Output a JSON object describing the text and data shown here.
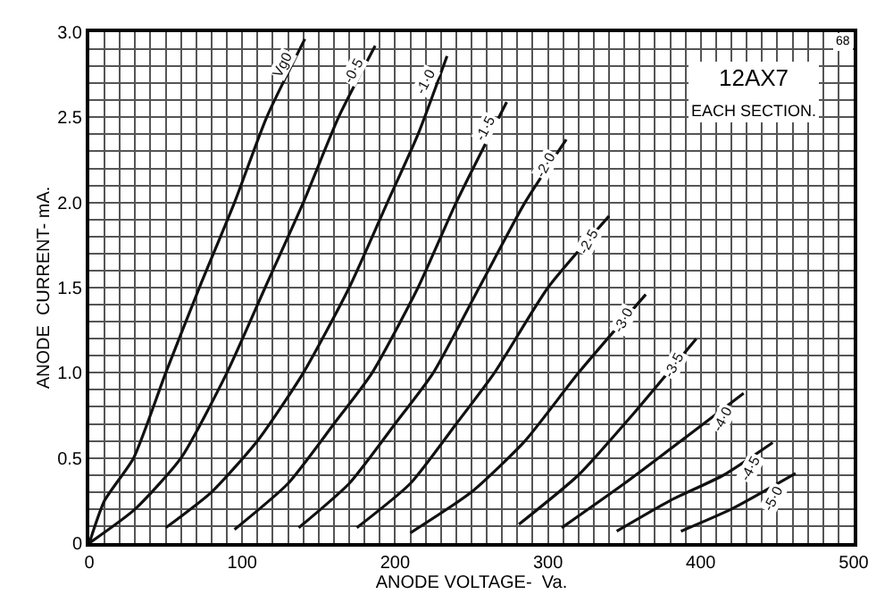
{
  "chart_data": {
    "type": "line",
    "title": "12AX7",
    "subtitle": "EACH SECTION.",
    "xlabel": "ANODE VOLTAGE-  Va.",
    "ylabel": "ANODE  CURRENT- mA.",
    "annotations": [
      "68"
    ],
    "legend": false,
    "grid": true,
    "marker": "none",
    "line_style": "solid",
    "xlim": [
      0,
      500
    ],
    "ylim": [
      0,
      3
    ],
    "xticks": [
      0,
      {
        "value": 10,
        "label": null
      },
      {
        "value": 20,
        "label": null
      },
      {
        "value": 30,
        "label": null
      },
      {
        "value": 40,
        "label": null
      },
      {
        "value": 50,
        "label": null
      },
      {
        "value": 60,
        "label": null
      },
      {
        "value": 70,
        "label": null
      },
      {
        "value": 80,
        "label": null
      },
      {
        "value": 90,
        "label": null
      },
      100,
      {
        "value": 110,
        "label": null
      },
      {
        "value": 120,
        "label": null
      },
      {
        "value": 130,
        "label": null
      },
      {
        "value": 140,
        "label": null
      },
      {
        "value": 150,
        "label": null
      },
      {
        "value": 160,
        "label": null
      },
      {
        "value": 170,
        "label": null
      },
      {
        "value": 180,
        "label": null
      },
      {
        "value": 190,
        "label": null
      },
      200,
      {
        "value": 210,
        "label": null
      },
      {
        "value": 220,
        "label": null
      },
      {
        "value": 230,
        "label": null
      },
      {
        "value": 240,
        "label": null
      },
      {
        "value": 250,
        "label": null
      },
      {
        "value": 260,
        "label": null
      },
      {
        "value": 270,
        "label": null
      },
      {
        "value": 280,
        "label": null
      },
      {
        "value": 290,
        "label": null
      },
      300,
      {
        "value": 310,
        "label": null
      },
      {
        "value": 320,
        "label": null
      },
      {
        "value": 330,
        "label": null
      },
      {
        "value": 340,
        "label": null
      },
      {
        "value": 350,
        "label": null
      },
      {
        "value": 360,
        "label": null
      },
      {
        "value": 370,
        "label": null
      },
      {
        "value": 380,
        "label": null
      },
      {
        "value": 390,
        "label": null
      },
      400,
      {
        "value": 410,
        "label": null
      },
      {
        "value": 420,
        "label": null
      },
      {
        "value": 430,
        "label": null
      },
      {
        "value": 440,
        "label": null
      },
      {
        "value": 450,
        "label": null
      },
      {
        "value": 460,
        "label": null
      },
      {
        "value": 470,
        "label": null
      },
      {
        "value": 480,
        "label": null
      },
      {
        "value": 490,
        "label": null
      },
      500
    ],
    "yticks": [
      0,
      {
        "value": 0.1,
        "label": null
      },
      {
        "value": 0.2,
        "label": null
      },
      {
        "value": 0.3,
        "label": null
      },
      {
        "value": 0.4,
        "label": null
      },
      {
        "value": 0.5,
        "label": "0.5"
      },
      {
        "value": 0.6,
        "label": null
      },
      {
        "value": 0.7,
        "label": null
      },
      {
        "value": 0.8,
        "label": null
      },
      {
        "value": 0.9,
        "label": null
      },
      {
        "value": 1.0,
        "label": "1.0"
      },
      {
        "value": 1.1,
        "label": null
      },
      {
        "value": 1.2,
        "label": null
      },
      {
        "value": 1.3,
        "label": null
      },
      {
        "value": 1.4,
        "label": null
      },
      {
        "value": 1.5,
        "label": "1.5"
      },
      {
        "value": 1.6,
        "label": null
      },
      {
        "value": 1.7,
        "label": null
      },
      {
        "value": 1.8,
        "label": null
      },
      {
        "value": 1.9,
        "label": null
      },
      {
        "value": 2.0,
        "label": "2.0"
      },
      {
        "value": 2.1,
        "label": null
      },
      {
        "value": 2.2,
        "label": null
      },
      {
        "value": 2.3,
        "label": null
      },
      {
        "value": 2.4,
        "label": null
      },
      {
        "value": 2.5,
        "label": "2.5"
      },
      {
        "value": 2.6,
        "label": null
      },
      {
        "value": 2.7,
        "label": null
      },
      {
        "value": 2.8,
        "label": null
      },
      {
        "value": 2.9,
        "label": null
      },
      {
        "value": 3.0,
        "label": "3.0"
      }
    ],
    "series": [
      {
        "name": "Vg0",
        "color": "#111111",
        "x": [
          0,
          10,
          29,
          50,
          72,
          95,
          116,
          141
        ],
        "values": [
          0,
          0.25,
          0.5,
          1.0,
          1.5,
          2.0,
          2.5,
          2.96
        ]
      },
      {
        "name": "-0·5",
        "color": "#111111",
        "x": [
          0,
          30,
          60,
          90,
          115,
          140,
          163,
          187
        ],
        "values": [
          0,
          0.2,
          0.5,
          1.0,
          1.5,
          2.0,
          2.5,
          2.92
        ]
      },
      {
        "name": "-1·0",
        "color": "#111111",
        "x": [
          50,
          80,
          110,
          140,
          170,
          195,
          215,
          234
        ],
        "values": [
          0.09,
          0.3,
          0.6,
          1.0,
          1.5,
          2.0,
          2.4,
          2.86
        ]
      },
      {
        "name": "-1·5",
        "color": "#111111",
        "x": [
          95,
          130,
          160,
          185,
          215,
          240,
          273
        ],
        "values": [
          0.08,
          0.35,
          0.7,
          1.0,
          1.5,
          2.0,
          2.59
        ]
      },
      {
        "name": "-2·0",
        "color": "#111111",
        "x": [
          137,
          170,
          200,
          225,
          255,
          285,
          312
        ],
        "values": [
          0.09,
          0.35,
          0.7,
          1.0,
          1.5,
          2.0,
          2.37
        ]
      },
      {
        "name": "-2·5",
        "color": "#111111",
        "x": [
          175,
          210,
          240,
          265,
          300,
          340
        ],
        "values": [
          0.09,
          0.35,
          0.7,
          1.0,
          1.5,
          1.92
        ]
      },
      {
        "name": "-3·0",
        "color": "#111111",
        "x": [
          210,
          250,
          285,
          320,
          364
        ],
        "values": [
          0.06,
          0.3,
          0.6,
          1.0,
          1.46
        ]
      },
      {
        "name": "-3·5",
        "color": "#111111",
        "x": [
          281,
          320,
          355,
          397
        ],
        "values": [
          0.11,
          0.4,
          0.75,
          1.2
        ]
      },
      {
        "name": "-4·0",
        "color": "#111111",
        "x": [
          309,
          350,
          390,
          428
        ],
        "values": [
          0.09,
          0.35,
          0.62,
          0.88
        ]
      },
      {
        "name": "-4·5",
        "color": "#111111",
        "x": [
          345,
          380,
          415,
          447
        ],
        "values": [
          0.07,
          0.25,
          0.4,
          0.59
        ]
      },
      {
        "name": "-5·0",
        "color": "#111111",
        "x": [
          387,
          420,
          462
        ],
        "values": [
          0.07,
          0.2,
          0.41
        ]
      }
    ]
  }
}
